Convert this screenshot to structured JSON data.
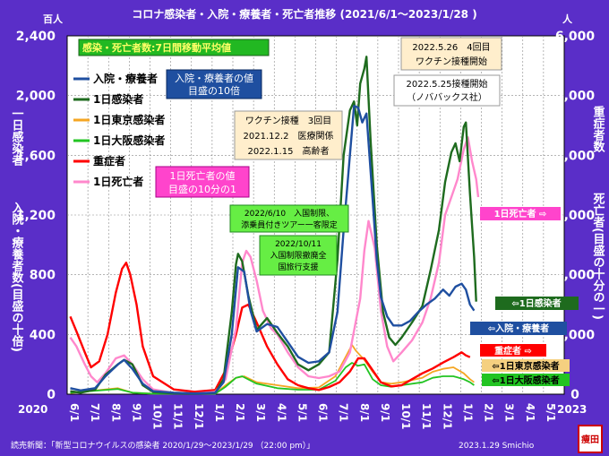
{
  "title": "コロナ感染者・入院・療養者・死亡者推移 (2021/6/1～2023/1/28 )",
  "left_unit": "百人",
  "right_unit": "人",
  "left_axis_label_top": "一日感染者",
  "left_axis_label_bottom": "入院・療養者数(目盛の十倍)",
  "right_axis_label_top": "重症者数",
  "right_axis_label_bottom": "死亡者(目盛の十分の一)",
  "year_start": "2020",
  "year_end": "2023",
  "source": "読売新聞：「新型コロナウイルスの感染者 2020/1/29～2023/1/29 （22:00 pm）」",
  "footer_date": "2023.1.29  Smichio",
  "stamp": "痩田",
  "colors": {
    "background": "#5a2ec8",
    "plot": "#ffffff",
    "hospital": "#1f4fa0",
    "daily": "#1e6b1e",
    "tokyo": "#f5a623",
    "osaka": "#22c422",
    "severe": "#ff0000",
    "deaths": "#ff88cc"
  },
  "notes": {
    "moving_avg": "感染・死亡者数:7日間移動平均値",
    "hospital_scale": [
      "入院・療養者の値",
      "目盛の10倍"
    ],
    "death_scale": [
      "1日死亡者の値",
      "目盛の10分の1"
    ],
    "vaccine3": [
      "ワクチン接種　3回目",
      "2021.12.2　医療関係",
      "2022.1.15　高齢者"
    ],
    "vaccine4": [
      "2022.5.26　4回目",
      "ワクチン接種開始"
    ],
    "novavax": [
      "2022.5.25接種開始",
      "（ノババックス社）"
    ],
    "travel1": [
      "2022/6/10　入国制限、",
      "添乗員付きツアー一客限定"
    ],
    "travel2": [
      "2022/10/11",
      "入国制限撤廃全",
      "国旅行支援"
    ]
  },
  "right_labels": {
    "deaths": "1日死亡者 ⇨",
    "daily": "⇦1日感染者",
    "hospital": "⇦入院・療養者",
    "severe": "重症者 ⇨",
    "tokyo": "⇦1日東京感染者",
    "osaka": "⇦1日大阪感染者"
  },
  "chart_data": {
    "type": "line",
    "title": "コロナ感染者・入院・療養者・死亡者推移 (2021/6/1～2023/1/28 )",
    "x_ticks": [
      "6/1",
      "7/1",
      "8/1",
      "9/1",
      "10/1",
      "11/1",
      "12/1",
      "1/1",
      "2/1",
      "3/1",
      "4/1",
      "5/1",
      "6/1",
      "7/1",
      "8/1",
      "9/1",
      "10/1",
      "11/1",
      "12/1",
      "1/1",
      "2/1",
      "3/1",
      "4/1",
      "5/1"
    ],
    "x_range_months": [
      0,
      23
    ],
    "y_left_ticks": [
      "0",
      "400",
      "800",
      "1,200",
      "1,600",
      "2,000",
      "2,400"
    ],
    "y_left_range": [
      0,
      2400
    ],
    "y_right_ticks": [
      "0",
      "1,000",
      "2,000",
      "3,000",
      "4,000",
      "5,000",
      "6,000"
    ],
    "y_right_range": [
      0,
      6000
    ],
    "legend_position": "top-left",
    "series": [
      {
        "name": "入院・療養者",
        "key": "hospital",
        "axis": "left",
        "points": [
          [
            0,
            40
          ],
          [
            0.5,
            25
          ],
          [
            1.2,
            40
          ],
          [
            1.7,
            120
          ],
          [
            2.3,
            200
          ],
          [
            2.6,
            230
          ],
          [
            3.0,
            170
          ],
          [
            3.5,
            70
          ],
          [
            4.0,
            20
          ],
          [
            5,
            10
          ],
          [
            6,
            5
          ],
          [
            7,
            10
          ],
          [
            7.4,
            80
          ],
          [
            7.8,
            400
          ],
          [
            8.1,
            850
          ],
          [
            8.4,
            820
          ],
          [
            8.7,
            560
          ],
          [
            9.0,
            420
          ],
          [
            9.5,
            470
          ],
          [
            10.0,
            450
          ],
          [
            10.5,
            350
          ],
          [
            11.0,
            250
          ],
          [
            11.5,
            210
          ],
          [
            12.0,
            220
          ],
          [
            12.5,
            280
          ],
          [
            12.9,
            550
          ],
          [
            13.2,
            1100
          ],
          [
            13.5,
            1600
          ],
          [
            13.7,
            1930
          ],
          [
            13.9,
            1920
          ],
          [
            14.1,
            1820
          ],
          [
            14.3,
            1880
          ],
          [
            14.6,
            1300
          ],
          [
            14.8,
            900
          ],
          [
            15.0,
            650
          ],
          [
            15.3,
            520
          ],
          [
            15.6,
            460
          ],
          [
            16.0,
            460
          ],
          [
            16.4,
            490
          ],
          [
            16.8,
            550
          ],
          [
            17.2,
            600
          ],
          [
            17.6,
            640
          ],
          [
            18.0,
            700
          ],
          [
            18.3,
            660
          ],
          [
            18.6,
            720
          ],
          [
            18.9,
            740
          ],
          [
            19.1,
            700
          ],
          [
            19.3,
            600
          ],
          [
            19.5,
            560
          ]
        ]
      },
      {
        "name": "1日感染者",
        "key": "daily",
        "axis": "left",
        "points": [
          [
            0,
            20
          ],
          [
            0.5,
            10
          ],
          [
            1.2,
            30
          ],
          [
            1.7,
            130
          ],
          [
            2.3,
            200
          ],
          [
            2.6,
            230
          ],
          [
            3.0,
            200
          ],
          [
            3.5,
            60
          ],
          [
            4.0,
            15
          ],
          [
            5,
            5
          ],
          [
            6,
            3
          ],
          [
            7,
            8
          ],
          [
            7.4,
            100
          ],
          [
            7.8,
            550
          ],
          [
            8.0,
            870
          ],
          [
            8.1,
            940
          ],
          [
            8.3,
            890
          ],
          [
            8.6,
            660
          ],
          [
            9.0,
            430
          ],
          [
            9.5,
            510
          ],
          [
            10.0,
            410
          ],
          [
            10.5,
            320
          ],
          [
            11.0,
            200
          ],
          [
            11.5,
            160
          ],
          [
            12.0,
            200
          ],
          [
            12.5,
            280
          ],
          [
            12.9,
            900
          ],
          [
            13.2,
            1600
          ],
          [
            13.5,
            1900
          ],
          [
            13.7,
            1960
          ],
          [
            13.85,
            1800
          ],
          [
            14.0,
            2080
          ],
          [
            14.2,
            2180
          ],
          [
            14.3,
            2260
          ],
          [
            14.5,
            1700
          ],
          [
            14.8,
            1000
          ],
          [
            15.1,
            550
          ],
          [
            15.4,
            380
          ],
          [
            15.7,
            330
          ],
          [
            16.0,
            380
          ],
          [
            16.5,
            480
          ],
          [
            17.0,
            590
          ],
          [
            17.4,
            830
          ],
          [
            17.8,
            1100
          ],
          [
            18.1,
            1420
          ],
          [
            18.4,
            1620
          ],
          [
            18.6,
            1680
          ],
          [
            18.8,
            1560
          ],
          [
            19.0,
            1790
          ],
          [
            19.1,
            1820
          ],
          [
            19.3,
            1340
          ],
          [
            19.5,
            920
          ],
          [
            19.6,
            620
          ]
        ]
      },
      {
        "name": "1日東京感染者",
        "key": "tokyo",
        "axis": "left",
        "points": [
          [
            0,
            8
          ],
          [
            2.3,
            40
          ],
          [
            3.0,
            10
          ],
          [
            4,
            3
          ],
          [
            7,
            3
          ],
          [
            7.5,
            60
          ],
          [
            8.0,
            110
          ],
          [
            8.4,
            120
          ],
          [
            9,
            80
          ],
          [
            10,
            60
          ],
          [
            11,
            40
          ],
          [
            12,
            45
          ],
          [
            12.8,
            120
          ],
          [
            13.3,
            250
          ],
          [
            13.6,
            330
          ],
          [
            13.8,
            290
          ],
          [
            14.2,
            230
          ],
          [
            14.6,
            150
          ],
          [
            15.0,
            80
          ],
          [
            15.5,
            70
          ],
          [
            16.0,
            80
          ],
          [
            17.0,
            110
          ],
          [
            17.5,
            150
          ],
          [
            18.0,
            170
          ],
          [
            18.5,
            180
          ],
          [
            19.0,
            140
          ],
          [
            19.3,
            100
          ],
          [
            19.5,
            80
          ]
        ]
      },
      {
        "name": "1日大阪感染者",
        "key": "osaka",
        "axis": "left",
        "points": [
          [
            0,
            10
          ],
          [
            2.3,
            35
          ],
          [
            3.0,
            10
          ],
          [
            4,
            3
          ],
          [
            7,
            3
          ],
          [
            7.5,
            50
          ],
          [
            8.0,
            110
          ],
          [
            8.3,
            120
          ],
          [
            9,
            70
          ],
          [
            10,
            40
          ],
          [
            11,
            30
          ],
          [
            12,
            30
          ],
          [
            12.8,
            90
          ],
          [
            13.3,
            180
          ],
          [
            13.6,
            210
          ],
          [
            13.9,
            190
          ],
          [
            14.2,
            200
          ],
          [
            14.6,
            100
          ],
          [
            15.0,
            60
          ],
          [
            15.5,
            50
          ],
          [
            16.0,
            60
          ],
          [
            17.0,
            80
          ],
          [
            17.5,
            110
          ],
          [
            18.0,
            120
          ],
          [
            18.5,
            120
          ],
          [
            19.0,
            100
          ],
          [
            19.3,
            80
          ],
          [
            19.5,
            60
          ]
        ]
      },
      {
        "name": "重症者",
        "key": "severe",
        "axis": "right",
        "points": [
          [
            0,
            1300
          ],
          [
            0.3,
            1050
          ],
          [
            0.7,
            700
          ],
          [
            1.0,
            450
          ],
          [
            1.4,
            550
          ],
          [
            1.8,
            1000
          ],
          [
            2.2,
            1700
          ],
          [
            2.5,
            2100
          ],
          [
            2.7,
            2200
          ],
          [
            2.9,
            2000
          ],
          [
            3.2,
            1500
          ],
          [
            3.5,
            800
          ],
          [
            4.0,
            300
          ],
          [
            5,
            80
          ],
          [
            6,
            40
          ],
          [
            7,
            70
          ],
          [
            7.5,
            400
          ],
          [
            8.0,
            1000
          ],
          [
            8.3,
            1450
          ],
          [
            8.6,
            1500
          ],
          [
            9.0,
            1200
          ],
          [
            9.5,
            800
          ],
          [
            10.0,
            500
          ],
          [
            10.5,
            250
          ],
          [
            11.0,
            150
          ],
          [
            11.5,
            100
          ],
          [
            12.0,
            70
          ],
          [
            12.5,
            120
          ],
          [
            13.0,
            200
          ],
          [
            13.5,
            380
          ],
          [
            13.9,
            600
          ],
          [
            14.2,
            600
          ],
          [
            14.5,
            450
          ],
          [
            15.0,
            200
          ],
          [
            15.5,
            130
          ],
          [
            16.0,
            150
          ],
          [
            16.5,
            250
          ],
          [
            17.0,
            350
          ],
          [
            17.5,
            430
          ],
          [
            18.0,
            530
          ],
          [
            18.5,
            620
          ],
          [
            18.9,
            700
          ],
          [
            19.1,
            650
          ],
          [
            19.3,
            620
          ]
        ]
      },
      {
        "name": "1日死亡者",
        "key": "deaths",
        "axis": "right",
        "points": [
          [
            0,
            950
          ],
          [
            0.3,
            800
          ],
          [
            0.7,
            500
          ],
          [
            1.0,
            300
          ],
          [
            1.3,
            200
          ],
          [
            1.7,
            350
          ],
          [
            2.2,
            600
          ],
          [
            2.6,
            650
          ],
          [
            3.0,
            500
          ],
          [
            3.5,
            250
          ],
          [
            4.0,
            80
          ],
          [
            5,
            20
          ],
          [
            6,
            10
          ],
          [
            7,
            40
          ],
          [
            7.5,
            250
          ],
          [
            8.0,
            1100
          ],
          [
            8.3,
            2200
          ],
          [
            8.5,
            2400
          ],
          [
            8.7,
            2300
          ],
          [
            9.0,
            1900
          ],
          [
            9.3,
            1400
          ],
          [
            9.7,
            1100
          ],
          [
            10.0,
            1000
          ],
          [
            10.5,
            700
          ],
          [
            11.0,
            450
          ],
          [
            11.5,
            300
          ],
          [
            12.0,
            270
          ],
          [
            12.5,
            300
          ],
          [
            13.0,
            380
          ],
          [
            13.5,
            700
          ],
          [
            14.0,
            1600
          ],
          [
            14.2,
            2400
          ],
          [
            14.4,
            2900
          ],
          [
            14.7,
            2450
          ],
          [
            15.0,
            1400
          ],
          [
            15.3,
            800
          ],
          [
            15.6,
            550
          ],
          [
            16.0,
            700
          ],
          [
            16.5,
            900
          ],
          [
            17.0,
            1200
          ],
          [
            17.4,
            1600
          ],
          [
            17.8,
            2200
          ],
          [
            18.1,
            3000
          ],
          [
            18.4,
            3300
          ],
          [
            18.7,
            3600
          ],
          [
            19.0,
            4100
          ],
          [
            19.2,
            4300
          ],
          [
            19.4,
            3900
          ],
          [
            19.6,
            3600
          ],
          [
            19.7,
            3300
          ]
        ]
      }
    ]
  }
}
